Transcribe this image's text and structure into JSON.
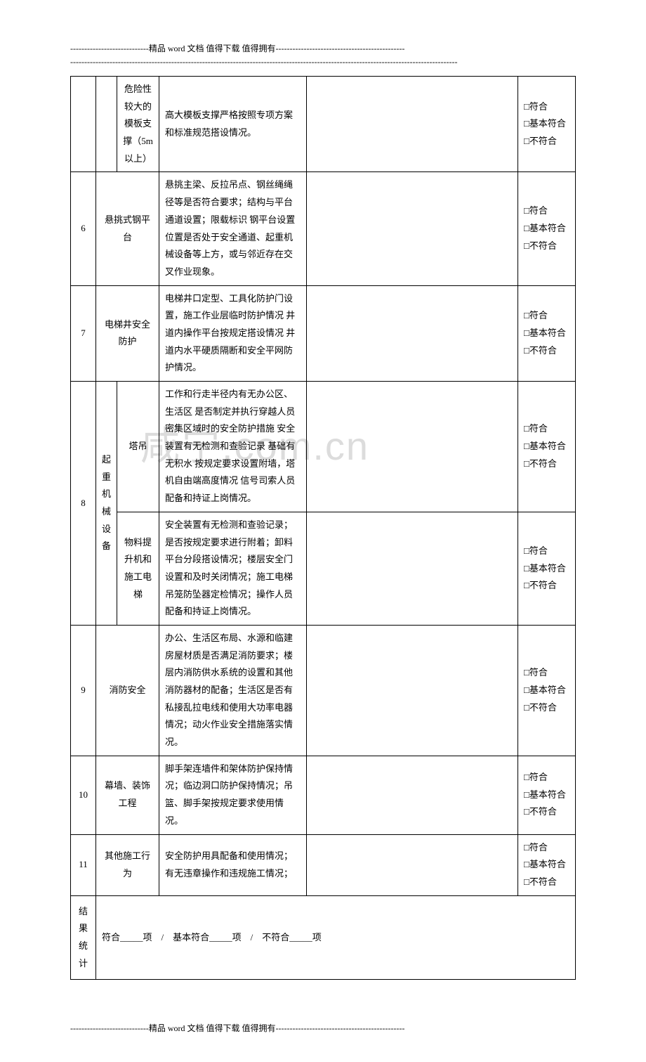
{
  "header": {
    "line1": "----------------------------精品 word 文档  值得下载  值得拥有----------------------------------------------",
    "line2": "------------------------------------------------------------------------------------------------------------------------------------------"
  },
  "watermark": "咸宁.com.cn",
  "checkOptions": {
    "opt1": "□符合",
    "opt2": "□基本符合",
    "opt3": "□不符合"
  },
  "rows": [
    {
      "num": "",
      "sub": "危险性较大的模板支撑（5m以上）",
      "desc": "高大模板支撑严格按照专项方案和标准规范搭设情况。"
    },
    {
      "num": "6",
      "cat": "悬挑式钢平台",
      "desc": "悬挑主梁、反拉吊点、钢丝绳绳径等是否符合要求；结构与平台通道设置；限载标识 钢平台设置位置是否处于安全通道、起重机械设备等上方，或与邻近存在交叉作业现象。"
    },
    {
      "num": "7",
      "cat": "电梯井安全防护",
      "desc": "电梯井口定型、工具化防护门设置，施工作业层临时防护情况 井道内操作平台按规定搭设情况 井道内水平硬质隔断和安全平网防护情况。"
    },
    {
      "num": "8",
      "catMain": "起重机械设备",
      "sub1": "塔吊",
      "desc1": "工作和行走半径内有无办公区、生活区 是否制定并执行穿越人员密集区域时的安全防护措施 安全装置有无检测和查验记录 基础有无积水 按规定要求设置附墙，塔机自由端高度情况 信号司索人员配备和持证上岗情况。",
      "sub2": "物料提升机和施工电梯",
      "desc2": "安全装置有无检测和查验记录；是否按规定要求进行附着；卸料平台分段搭设情况；楼层安全门设置和及时关闭情况；施工电梯吊笼防坠器定检情况；操作人员配备和持证上岗情况。"
    },
    {
      "num": "9",
      "cat": "消防安全",
      "desc": "办公、生活区布局、水源和临建房屋材质是否满足消防要求；楼层内消防供水系统的设置和其他消防器材的配备；生活区是否有私接乱拉电线和使用大功率电器情况；动火作业安全措施落实情况。"
    },
    {
      "num": "10",
      "cat": "幕墙、装饰工程",
      "desc": "脚手架连墙件和架体防护保持情况；临边洞口防护保持情况；吊篮、脚手架按规定要求使用情况。"
    },
    {
      "num": "11",
      "cat": "其他施工行为",
      "desc": "安全防护用具配备和使用情况；有无违章操作和违规施工情况；"
    }
  ],
  "summary": {
    "label": "结果统计",
    "text": "符合_____项　/　基本符合_____项　/　不符合_____项"
  },
  "footer": "----------------------------精品 word 文档  值得下载  值得拥有----------------------------------------------"
}
